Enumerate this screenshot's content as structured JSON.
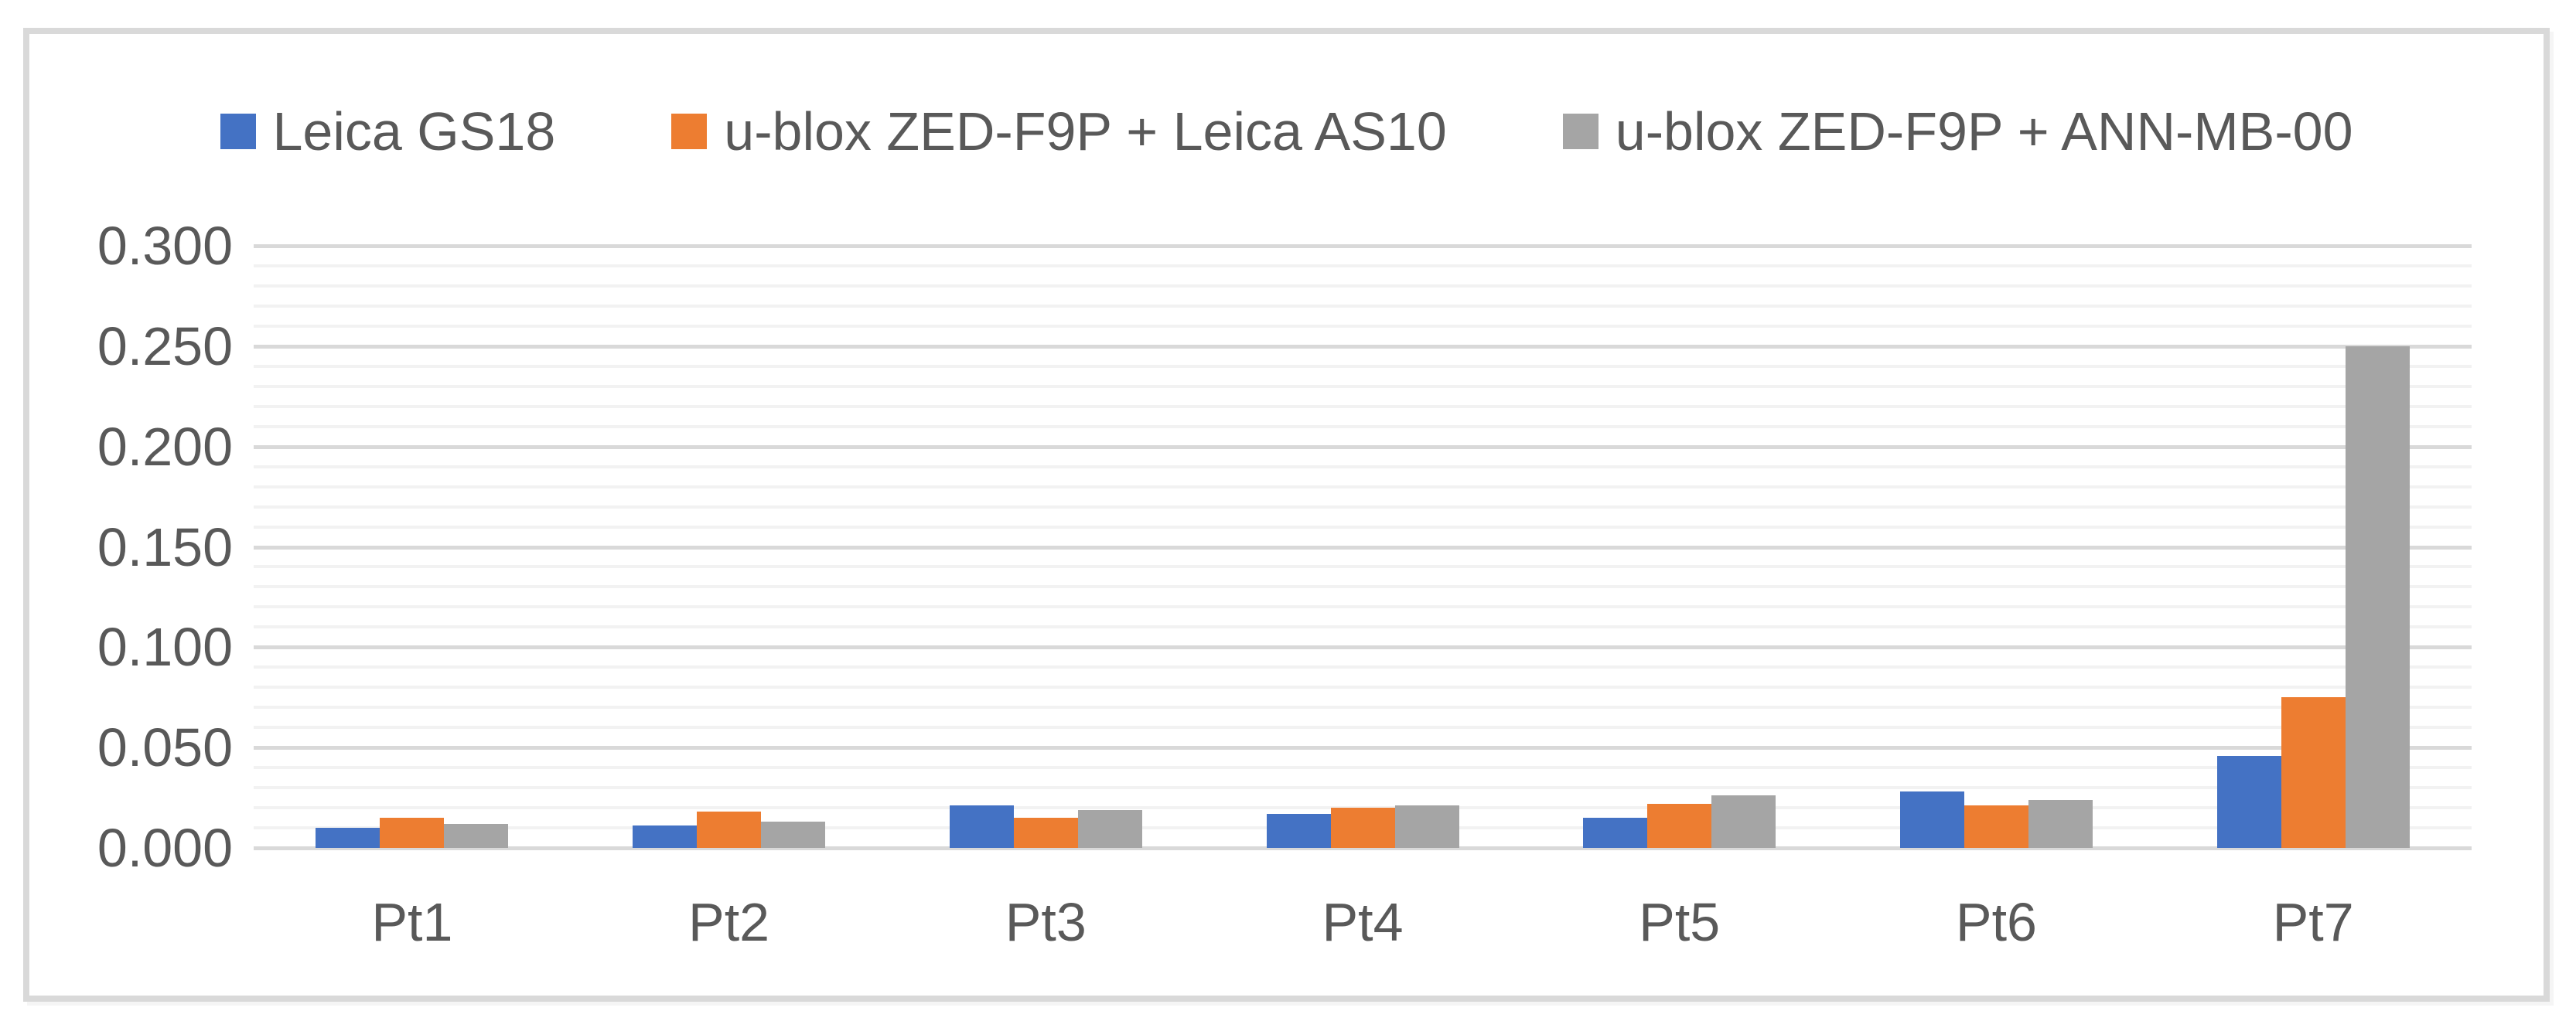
{
  "chart_data": {
    "type": "bar",
    "title": "",
    "xlabel": "",
    "ylabel": "",
    "categories": [
      "Pt1",
      "Pt2",
      "Pt3",
      "Pt4",
      "Pt5",
      "Pt6",
      "Pt7"
    ],
    "series": [
      {
        "name": "Leica GS18",
        "color": "#4472C4",
        "values": [
          0.01,
          0.011,
          0.021,
          0.017,
          0.015,
          0.028,
          0.046
        ]
      },
      {
        "name": "u-blox ZED-F9P + Leica AS10",
        "color": "#ED7D31",
        "values": [
          0.015,
          0.018,
          0.015,
          0.02,
          0.022,
          0.021,
          0.075
        ]
      },
      {
        "name": "u-blox ZED-F9P + ANN-MB-00",
        "color": "#A5A5A5",
        "values": [
          0.012,
          0.013,
          0.019,
          0.021,
          0.026,
          0.024,
          0.25
        ]
      }
    ],
    "ylim": [
      0.0,
      0.3
    ],
    "y_major_unit": 0.05,
    "y_minor_unit": 0.01,
    "y_tick_labels": [
      "0.000",
      "0.050",
      "0.100",
      "0.150",
      "0.200",
      "0.250",
      "0.300"
    ],
    "grid": "horizontal major+minor",
    "legend_position": "top"
  },
  "palette": {
    "axis_text": "#595959",
    "major_gridline": "#d9d9d9",
    "minor_gridline": "#f2f2f2",
    "frame_border": "#d9d9d9",
    "background": "#ffffff"
  }
}
